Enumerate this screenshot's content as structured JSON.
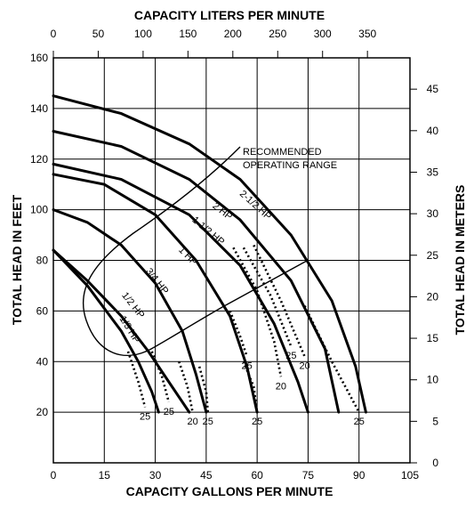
{
  "chart_data": {
    "type": "line",
    "x_label": "CAPACITY GALLONS PER MINUTE",
    "x2_label": "CAPACITY LITERS PER MINUTE",
    "y_label": "TOTAL HEAD IN FEET",
    "y2_label": "TOTAL HEAD IN METERS",
    "xlim": [
      0,
      105
    ],
    "xticks": [
      0,
      15,
      30,
      45,
      60,
      75,
      90,
      105
    ],
    "x2lim": [
      0,
      397.4
    ],
    "x2ticks": [
      0,
      50,
      100,
      150,
      200,
      250,
      300,
      350
    ],
    "ylim": [
      0,
      160
    ],
    "yticks": [
      20,
      40,
      60,
      80,
      100,
      120,
      140,
      160
    ],
    "y2lim": [
      0,
      48.77
    ],
    "y2ticks": [
      0,
      5,
      10,
      15,
      20,
      25,
      30,
      35,
      40,
      45
    ],
    "grid": true,
    "color": "#000000",
    "annotation": [
      "RECOMMENDED",
      "OPERATING RANGE"
    ],
    "series": [
      {
        "name": "1/3 HP",
        "style": "solid",
        "x": [
          0,
          10,
          20,
          25,
          29,
          31
        ],
        "values": [
          84,
          70,
          52,
          40,
          28,
          20
        ]
      },
      {
        "name": "1/2 HP",
        "style": "solid",
        "x": [
          0,
          10,
          20,
          28,
          34,
          40
        ],
        "values": [
          84,
          72,
          58,
          44,
          32,
          20
        ]
      },
      {
        "name": "3/4 HP",
        "style": "solid",
        "x": [
          0,
          10,
          20,
          30,
          38,
          42,
          45
        ],
        "values": [
          100,
          95,
          86,
          71,
          52,
          35,
          20
        ]
      },
      {
        "name": "1 HP",
        "style": "solid",
        "x": [
          0,
          15,
          30,
          42,
          52,
          57,
          60
        ],
        "values": [
          114,
          110,
          98,
          80,
          58,
          38,
          20
        ]
      },
      {
        "name": "1-1/2 HP",
        "style": "solid",
        "x": [
          0,
          20,
          40,
          55,
          65,
          72,
          75
        ],
        "values": [
          118,
          112,
          98,
          78,
          55,
          32,
          20
        ]
      },
      {
        "name": "2 HP",
        "style": "solid",
        "x": [
          0,
          20,
          40,
          55,
          70,
          80,
          84
        ],
        "values": [
          131,
          125,
          112,
          96,
          72,
          45,
          20
        ]
      },
      {
        "name": "2-1/2 HP",
        "style": "solid",
        "x": [
          0,
          20,
          40,
          55,
          70,
          82,
          89,
          92
        ],
        "values": [
          145,
          138,
          126,
          112,
          90,
          64,
          38,
          20
        ]
      },
      {
        "name": "25",
        "style": "dotted",
        "x": [
          22,
          25,
          27
        ],
        "values": [
          44,
          32,
          22
        ]
      },
      {
        "name": "25",
        "style": "dotted",
        "x": [
          29,
          32,
          34
        ],
        "values": [
          44,
          34,
          24
        ]
      },
      {
        "name": "20",
        "style": "dotted",
        "x": [
          37,
          39.5,
          41
        ],
        "values": [
          40,
          30,
          20
        ]
      },
      {
        "name": "25",
        "style": "dotted",
        "x": [
          43,
          45,
          45.5
        ],
        "values": [
          38,
          28,
          20
        ]
      },
      {
        "name": "25",
        "style": "dotted",
        "x": [
          52,
          55,
          57
        ],
        "values": [
          60,
          50,
          42
        ]
      },
      {
        "name": "25",
        "style": "dotted",
        "x": [
          56,
          59,
          60
        ],
        "values": [
          40,
          30,
          20
        ]
      },
      {
        "name": "20",
        "style": "dotted",
        "x": [
          53,
          60,
          65,
          67
        ],
        "values": [
          85,
          68,
          48,
          34
        ]
      },
      {
        "name": "25",
        "style": "dotted",
        "x": [
          56,
          64,
          70
        ],
        "values": [
          85,
          66,
          46
        ]
      },
      {
        "name": "20",
        "style": "dotted",
        "x": [
          59,
          67,
          74
        ],
        "values": [
          86,
          64,
          42
        ]
      },
      {
        "name": "25",
        "style": "dotted",
        "x": [
          74,
          82,
          90
        ],
        "values": [
          62,
          40,
          20
        ]
      }
    ]
  }
}
